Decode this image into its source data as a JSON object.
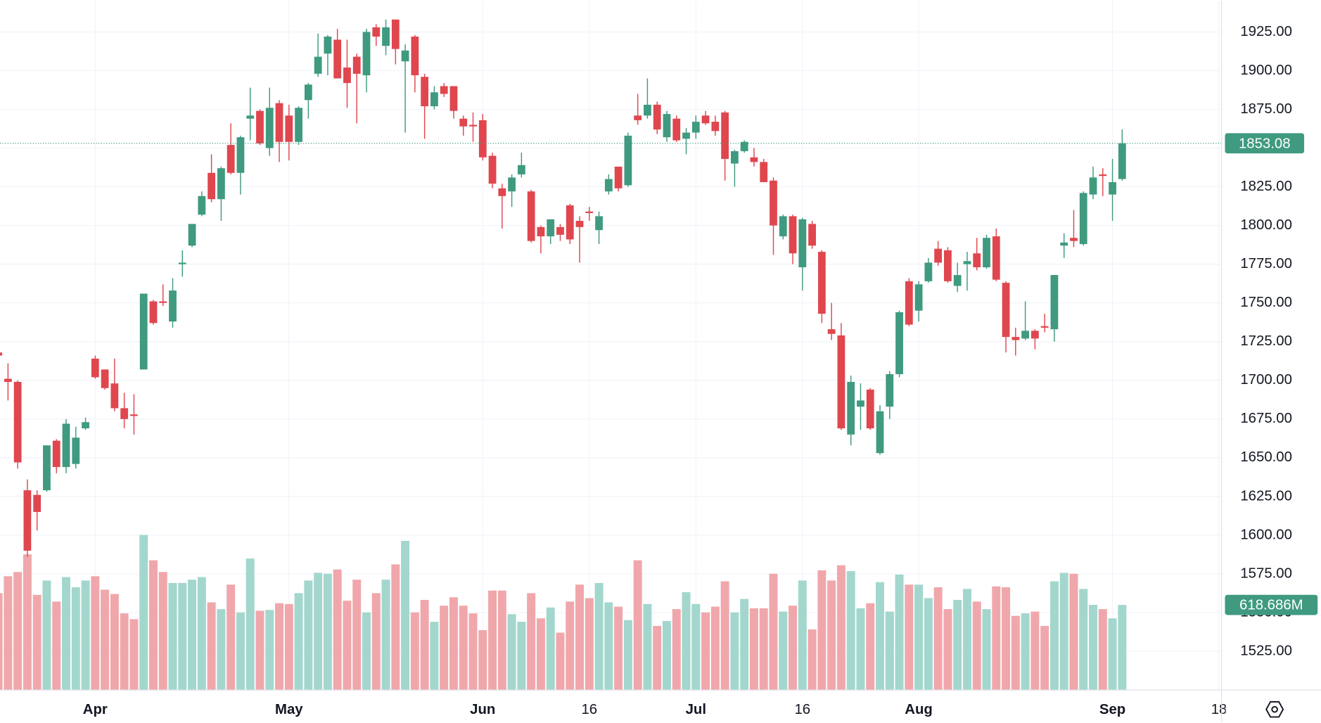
{
  "chart_data": {
    "type": "candlestick",
    "categories": [
      null,
      null,
      null,
      null,
      null,
      null,
      null,
      null,
      null,
      null,
      "Apr",
      null,
      null,
      null,
      null,
      null,
      null,
      null,
      null,
      null,
      null,
      null,
      null,
      null,
      null,
      null,
      null,
      null,
      null,
      null,
      "May",
      null,
      null,
      null,
      null,
      null,
      null,
      null,
      null,
      null,
      null,
      null,
      null,
      null,
      null,
      null,
      null,
      null,
      null,
      null,
      "Jun",
      null,
      null,
      null,
      null,
      null,
      null,
      null,
      null,
      null,
      null,
      "16",
      null,
      null,
      null,
      null,
      null,
      null,
      null,
      null,
      null,
      null,
      "Jul",
      null,
      null,
      null,
      null,
      null,
      null,
      null,
      null,
      null,
      null,
      "16",
      null,
      null,
      null,
      null,
      null,
      null,
      null,
      null,
      null,
      null,
      null,
      "Aug",
      null,
      null,
      null,
      null,
      null,
      null,
      null,
      null,
      null,
      null,
      null,
      null,
      null,
      null,
      null,
      null,
      null,
      null,
      null,
      "Sep",
      null,
      null,
      null,
      null,
      null,
      null,
      null,
      null,
      null,
      null,
      "18"
    ],
    "open": [
      1718,
      1701,
      1699,
      1629,
      1626,
      1629,
      1661,
      1644,
      1646,
      1669,
      1714,
      1707,
      1698,
      1682,
      1678,
      1707,
      1751,
      1751,
      1738,
      1775,
      1787,
      1807,
      1834,
      1817,
      1852,
      1834,
      1869,
      1874,
      1850,
      1879,
      1871,
      1854,
      1881,
      1898,
      1911,
      1920,
      1902,
      1909,
      1897,
      1928,
      1916,
      1933,
      1906,
      1922,
      1896,
      1877,
      1890,
      1890,
      1869,
      1865,
      1868,
      1845,
      1824,
      1822,
      1833,
      1822,
      1799,
      1793,
      1799,
      1813,
      1803,
      1809,
      1797,
      1822,
      1838,
      1826,
      1871,
      1871,
      1878,
      1857,
      1869,
      1856,
      1860,
      1871,
      1867,
      1873,
      1840,
      1848,
      1844,
      1841,
      1829,
      1793,
      1806,
      1773,
      1801,
      1783,
      1733,
      1729,
      1665,
      1683,
      1694,
      1653,
      1683,
      1704,
      1764,
      1745,
      1764,
      1785,
      1784,
      1761,
      1775,
      1782,
      1773,
      1793,
      1763,
      1728,
      1727,
      1732,
      1735,
      1733,
      1787,
      1792,
      1788,
      1820,
      1833,
      1820,
      1830,
      null,
      null,
      null,
      null,
      null,
      null,
      null,
      null,
      null,
      null
    ],
    "high": [
      1719,
      1711,
      1700,
      1636,
      1629,
      1658,
      1662,
      1675,
      1670,
      1676,
      1716,
      1707,
      1714,
      1692,
      1691,
      1756,
      1752,
      1762,
      1766,
      1784,
      1801,
      1822,
      1846,
      1838,
      1866,
      1858,
      1889,
      1875,
      1889,
      1881,
      1878,
      1877,
      1892,
      1924,
      1923,
      1927,
      1920,
      1911,
      1927,
      1930,
      1933,
      1933,
      1917,
      1923,
      1898,
      1890,
      1892,
      1890,
      1871,
      1873,
      1872,
      1847,
      1827,
      1833,
      1847,
      1823,
      1800,
      1804,
      1801,
      1814,
      1806,
      1812,
      1809,
      1833,
      1838,
      1860,
      1885,
      1895,
      1880,
      1874,
      1871,
      1863,
      1871,
      1874,
      1871,
      1874,
      1849,
      1855,
      1850,
      1843,
      1831,
      1807,
      1807,
      1805,
      1803,
      1784,
      1750,
      1737,
      1703,
      1698,
      1695,
      1684,
      1706,
      1745,
      1766,
      1764,
      1779,
      1790,
      1786,
      1776,
      1783,
      1792,
      1794,
      1798,
      1764,
      1734,
      1751,
      1733,
      1743,
      1768,
      1795,
      1810,
      1822,
      1838,
      1837,
      1843,
      1862,
      null,
      null,
      null,
      null,
      null,
      null,
      null,
      null,
      null,
      null
    ],
    "low": [
      1715,
      1687,
      1643,
      1586,
      1603,
      1628,
      1640,
      1640,
      1643,
      1668,
      1701,
      1694,
      1680,
      1669,
      1665,
      1707,
      1736,
      1748,
      1734,
      1767,
      1786,
      1806,
      1815,
      1803,
      1833,
      1820,
      1855,
      1852,
      1845,
      1841,
      1842,
      1852,
      1869,
      1896,
      1897,
      1895,
      1876,
      1866,
      1886,
      1916,
      1910,
      1904,
      1860,
      1886,
      1856,
      1875,
      1883,
      1869,
      1858,
      1854,
      1842,
      1824,
      1798,
      1812,
      1831,
      1789,
      1782,
      1788,
      1790,
      1788,
      1776,
      1803,
      1788,
      1820,
      1822,
      1825,
      1865,
      1869,
      1859,
      1854,
      1854,
      1846,
      1856,
      1865,
      1858,
      1829,
      1825,
      1847,
      1838,
      1828,
      1781,
      1791,
      1775,
      1758,
      1785,
      1737,
      1726,
      1668,
      1658,
      1668,
      1668,
      1652,
      1675,
      1702,
      1735,
      1738,
      1763,
      1774,
      1763,
      1757,
      1758,
      1771,
      1772,
      1764,
      1718,
      1716,
      1726,
      1720,
      1731,
      1725,
      1779,
      1786,
      1787,
      1817,
      1819,
      1803,
      1829,
      null,
      null,
      null,
      null,
      null,
      null,
      null,
      null,
      null,
      null
    ],
    "close": [
      1716,
      1699,
      1647,
      1590,
      1615,
      1658,
      1644,
      1672,
      1663,
      1673,
      1702,
      1695,
      1682,
      1675,
      1677,
      1756,
      1737,
      1750,
      1758,
      1776,
      1801,
      1819,
      1817,
      1837,
      1834,
      1857,
      1871,
      1853,
      1876,
      1854,
      1854,
      1876,
      1891,
      1909,
      1922,
      1895,
      1892,
      1898,
      1925,
      1922,
      1928,
      1914,
      1913,
      1897,
      1877,
      1886,
      1885,
      1874,
      1864,
      1864,
      1844,
      1827,
      1819,
      1831,
      1839,
      1790,
      1793,
      1804,
      1794,
      1791,
      1799,
      1808,
      1806,
      1830,
      1824,
      1858,
      1868,
      1878,
      1862,
      1872,
      1855,
      1860,
      1867,
      1866,
      1861,
      1843,
      1848,
      1854,
      1841,
      1828,
      1800,
      1806,
      1782,
      1804,
      1787,
      1743,
      1730,
      1669,
      1699,
      1687,
      1669,
      1680,
      1704,
      1744,
      1736,
      1762,
      1776,
      1776,
      1764,
      1768,
      1777,
      1773,
      1792,
      1765,
      1728,
      1726,
      1732,
      1727,
      1734,
      1768,
      1789,
      1790,
      1821,
      1831,
      1832,
      1828,
      1853.08,
      null,
      null,
      null,
      null,
      null,
      null,
      null,
      null,
      null,
      null
    ],
    "volume": [
      704,
      827,
      858,
      986,
      692,
      796,
      643,
      821,
      747,
      796,
      827,
      729,
      698,
      557,
      515,
      1127,
      943,
      858,
      778,
      778,
      802,
      821,
      637,
      588,
      766,
      564,
      956,
      576,
      582,
      631,
      625,
      704,
      796,
      852,
      845,
      876,
      649,
      802,
      564,
      704,
      802,
      913,
      1084,
      564,
      655,
      496,
      613,
      674,
      613,
      557,
      435,
      723,
      723,
      551,
      496,
      704,
      521,
      600,
      417,
      643,
      766,
      668,
      778,
      637,
      606,
      508,
      943,
      625,
      466,
      502,
      588,
      711,
      625,
      564,
      606,
      790,
      564,
      662,
      594,
      594,
      845,
      570,
      613,
      796,
      441,
      870,
      796,
      907,
      864,
      594,
      631,
      784,
      570,
      839,
      766,
      766,
      668,
      747,
      588,
      655,
      735,
      643,
      588,
      753,
      747,
      539,
      557,
      570,
      466,
      790,
      852,
      845,
      735,
      619,
      588,
      521,
      618.686,
      null,
      null,
      null,
      null,
      null,
      null,
      null,
      null,
      null,
      null
    ],
    "last_volume_label": "618.686M",
    "ylim": [
      1500,
      1945
    ],
    "yticks": [
      {
        "value": 1525,
        "label": "1525.00"
      },
      {
        "value": 1550,
        "label": "1550.00"
      },
      {
        "value": 1575,
        "label": "1575.00"
      },
      {
        "value": 1600,
        "label": "1600.00"
      },
      {
        "value": 1625,
        "label": "1625.00"
      },
      {
        "value": 1650,
        "label": "1650.00"
      },
      {
        "value": 1675,
        "label": "1675.00"
      },
      {
        "value": 1700,
        "label": "1700.00"
      },
      {
        "value": 1725,
        "label": "1725.00"
      },
      {
        "value": 1750,
        "label": "1750.00"
      },
      {
        "value": 1775,
        "label": "1775.00"
      },
      {
        "value": 1800,
        "label": "1800.00"
      },
      {
        "value": 1825,
        "label": "1825.00"
      },
      {
        "value": 1850,
        "label": "1850.00"
      },
      {
        "value": 1875,
        "label": "1875.00"
      },
      {
        "value": 1900,
        "label": "1900.00"
      },
      {
        "value": 1925,
        "label": "1925.00"
      }
    ],
    "volume_ylim": [
      0,
      1200
    ],
    "grid": true,
    "up_color": "#3f9a80",
    "down_color": "#e0464e",
    "volume_up_color": "#a3d7cd",
    "volume_down_color": "#f0a7ab"
  }
}
